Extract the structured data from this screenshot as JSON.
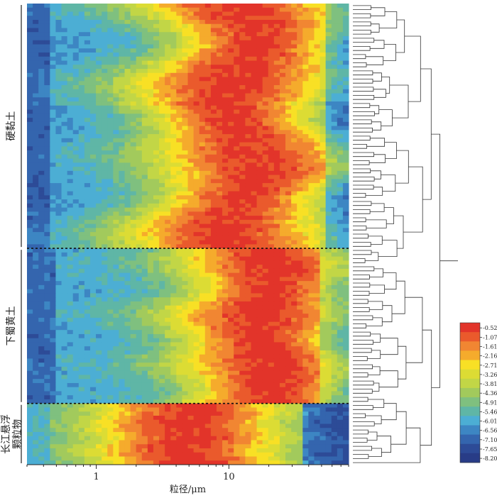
{
  "chart_data": {
    "type": "heatmap",
    "xlabel": "粒径/μm",
    "x_scale": "log",
    "x_range": [
      0.3,
      80
    ],
    "x_ticks": [
      {
        "value": 1,
        "label": "1"
      },
      {
        "value": 10,
        "label": "10"
      }
    ],
    "groups": [
      {
        "label": "硬黏土",
        "rows": 60
      },
      {
        "label": "下蜀黄土",
        "rows": 38
      },
      {
        "label": "长江悬浮颗粒物",
        "rows": 15
      }
    ],
    "colorbar": {
      "labels": [
        "-0.52",
        "-1.07",
        "-1.61",
        "-2.16",
        "-2.71",
        "-3.26",
        "-3.81",
        "-4.36",
        "-4.91",
        "-5.46",
        "-6.01",
        "-6.56",
        "-7.10",
        "-7.65",
        "-8.20"
      ],
      "colors": [
        "#e2342a",
        "#ea5a2c",
        "#f18632",
        "#f5ab2c",
        "#f8e025",
        "#dcdc34",
        "#c2d646",
        "#a2ca5c",
        "#7fc07f",
        "#5fb6a6",
        "#4caed4",
        "#3d86c3",
        "#3465ae",
        "#2d4b97",
        "#283c87"
      ]
    },
    "dendrogram": true,
    "group_separators": "dotted"
  }
}
